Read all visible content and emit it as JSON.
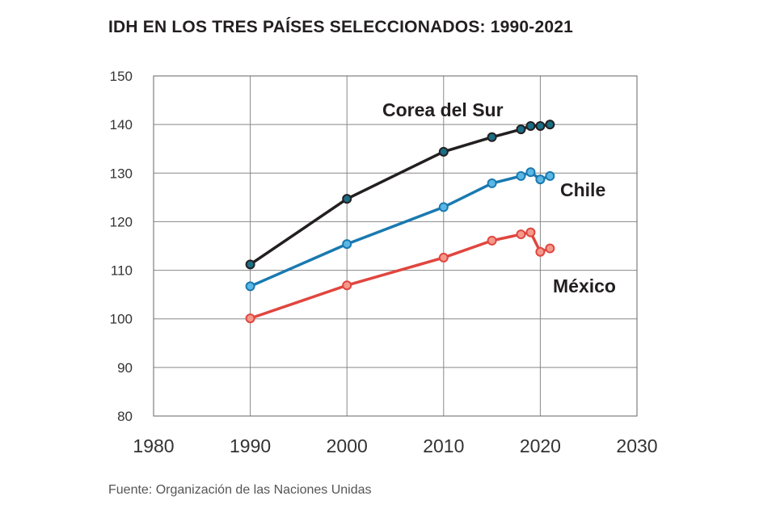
{
  "chart_data": {
    "type": "line",
    "title": "IDH EN LOS TRES PAÍSES SELECCIONADOS: 1990-2021",
    "source": "Fuente: Organización de las Naciones Unidas",
    "xlabel": "",
    "ylabel": "",
    "xlim": [
      1980,
      2030
    ],
    "ylim": [
      80,
      150
    ],
    "xticks": [
      1980,
      1990,
      2000,
      2010,
      2020,
      2030
    ],
    "yticks": [
      80,
      90,
      100,
      110,
      120,
      130,
      140,
      150
    ],
    "grid": true,
    "x": [
      1990,
      2000,
      2010,
      2015,
      2018,
      2019,
      2020,
      2021
    ],
    "series": [
      {
        "name": "Corea del Sur",
        "color": "#231f20",
        "marker_color": "#1a6e86",
        "values": [
          111.2,
          124.7,
          134.4,
          137.4,
          139.0,
          139.7,
          139.7,
          140.0
        ]
      },
      {
        "name": "Chile",
        "color": "#1a79b0",
        "marker_color": "#5bb8e6",
        "values": [
          106.7,
          115.4,
          123.0,
          127.9,
          129.4,
          130.2,
          128.7,
          129.4
        ]
      },
      {
        "name": "México",
        "color": "#e0463f",
        "marker_color": "#f49a8c",
        "values": [
          100.1,
          106.9,
          112.6,
          116.1,
          117.4,
          117.8,
          113.8,
          114.5
        ]
      }
    ]
  }
}
